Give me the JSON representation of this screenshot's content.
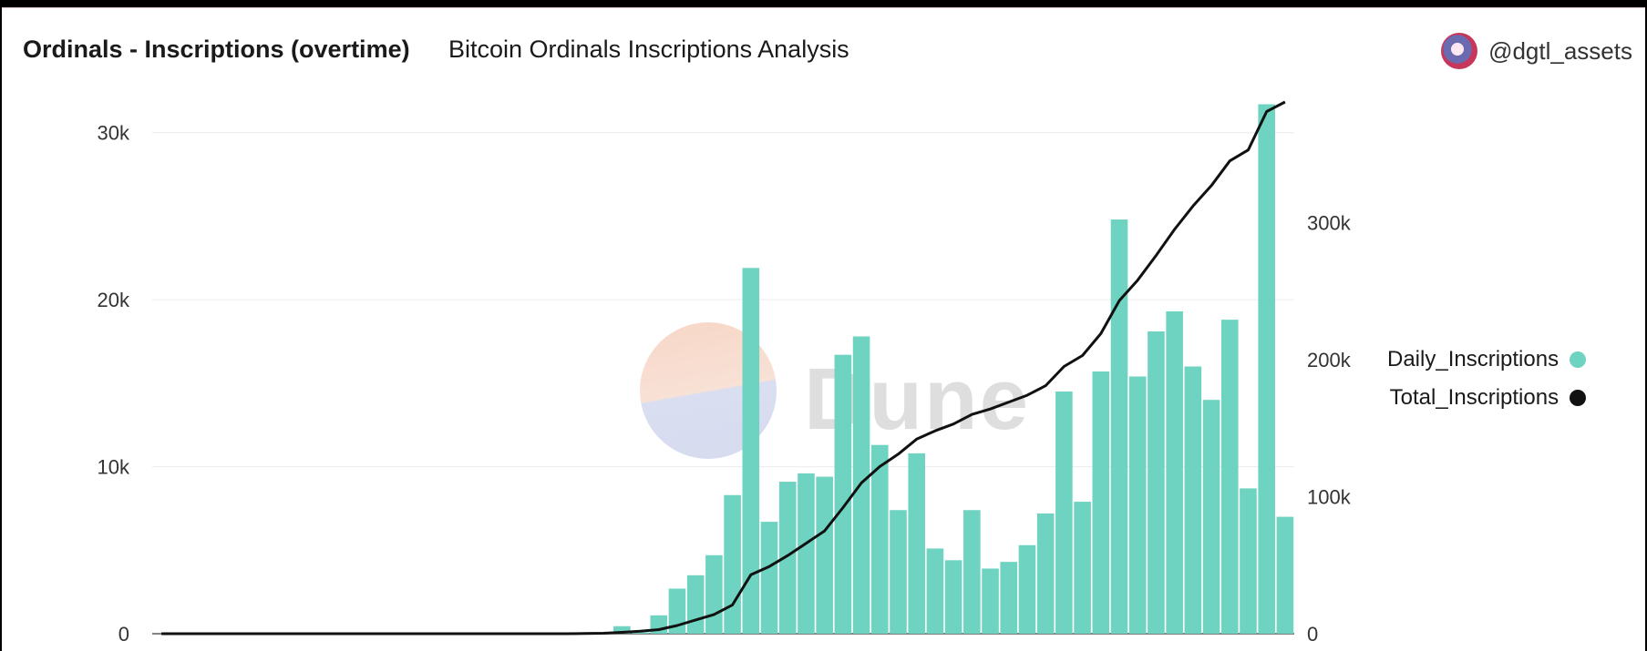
{
  "header": {
    "title": "Ordinals - Inscriptions (overtime)",
    "subtitle": "Bitcoin Ordinals Inscriptions Analysis",
    "author": "@dgtl_assets",
    "watermark": "Dune"
  },
  "colors": {
    "bar": "#6fd3c1",
    "line": "#111111",
    "grid": "#ececec"
  },
  "chart_data": {
    "type": "bar",
    "title": "Ordinals - Inscriptions (overtime)",
    "subtitle": "Bitcoin Ordinals Inscriptions Analysis",
    "y_left": {
      "ticks": [
        "0",
        "10k",
        "20k",
        "30k"
      ],
      "ylim": [
        0,
        32000
      ]
    },
    "y_right": {
      "ticks": [
        "0",
        "100k",
        "200k",
        "300k"
      ],
      "ylim": [
        0,
        390000
      ]
    },
    "grid": true,
    "legend_placement": "right",
    "series": [
      {
        "name": "Daily_Inscriptions",
        "type": "bar",
        "axis": "left",
        "values": [
          5,
          5,
          5,
          5,
          5,
          5,
          5,
          5,
          5,
          5,
          5,
          5,
          5,
          5,
          5,
          5,
          5,
          5,
          5,
          5,
          5,
          5,
          5,
          20,
          60,
          450,
          80,
          1100,
          2700,
          3500,
          4700,
          8300,
          21900,
          6700,
          9100,
          9600,
          9400,
          16700,
          17800,
          11300,
          7400,
          10800,
          5100,
          4400,
          7400,
          3900,
          4300,
          5300,
          7200,
          14500,
          7900,
          15700,
          24800,
          15400,
          18100,
          19300,
          16000,
          14000,
          18800,
          8700,
          31700,
          7000
        ]
      },
      {
        "name": "Total_Inscriptions",
        "type": "line",
        "axis": "right",
        "values": [
          0,
          0,
          0,
          0,
          0,
          0,
          0,
          0,
          0,
          0,
          0,
          0,
          0,
          0,
          0,
          0,
          0,
          0,
          0,
          0,
          0,
          0,
          0,
          100,
          300,
          1000,
          1800,
          3000,
          6000,
          10000,
          14000,
          21000,
          43000,
          49000,
          57000,
          66000,
          75000,
          92000,
          110000,
          122000,
          131000,
          142000,
          148000,
          153000,
          160000,
          164000,
          169000,
          174000,
          181000,
          195000,
          203000,
          219000,
          243000,
          258000,
          276000,
          295000,
          312000,
          327000,
          345000,
          353000,
          381000,
          388000
        ]
      }
    ]
  }
}
